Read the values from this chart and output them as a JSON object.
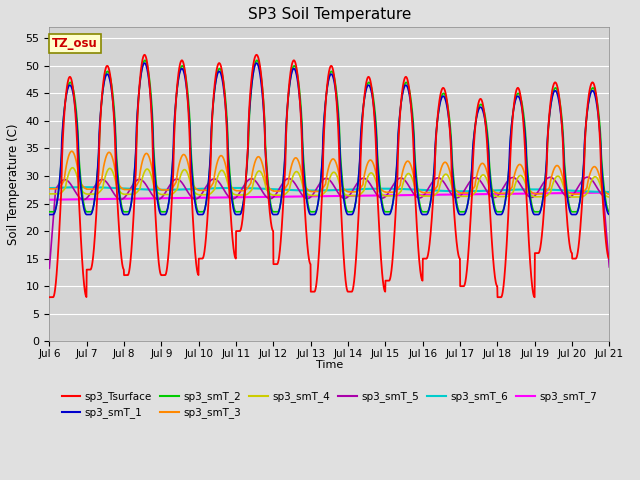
{
  "title": "SP3 Soil Temperature",
  "ylabel": "Soil Temperature (C)",
  "xlabel": "Time",
  "tz_label": "TZ_osu",
  "ylim": [
    0,
    57
  ],
  "yticks": [
    0,
    5,
    10,
    15,
    20,
    25,
    30,
    35,
    40,
    45,
    50,
    55
  ],
  "xticklabels": [
    "Jul 6",
    "Jul 7",
    "Jul 8",
    "Jul 9",
    "Jul 10",
    "Jul 11",
    "Jul 12",
    "Jul 13",
    "Jul 14",
    "Jul 15",
    "Jul 16",
    "Jul 17",
    "Jul 18",
    "Jul 19",
    "Jul 20",
    "Jul 21"
  ],
  "background_color": "#e0e0e0",
  "plot_bg_color": "#d4d4d4",
  "series_colors": {
    "sp3_Tsurface": "#ff0000",
    "sp3_smT_1": "#0000cc",
    "sp3_smT_2": "#00cc00",
    "sp3_smT_3": "#ff8800",
    "sp3_smT_4": "#cccc00",
    "sp3_smT_5": "#aa00aa",
    "sp3_smT_6": "#00cccc",
    "sp3_smT_7": "#ff00ff"
  },
  "n_days": 15,
  "pts_per_day": 144
}
